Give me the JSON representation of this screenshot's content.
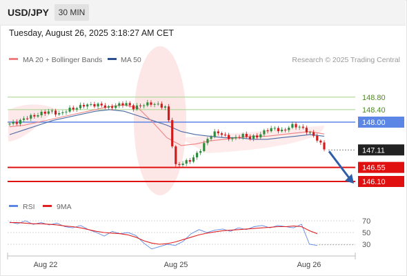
{
  "header": {
    "symbol": "USD/JPY",
    "timeframe": "30 MIN",
    "timestamp": "Tuesday, August 26, 2025 3:18:27 AM CET"
  },
  "legend": {
    "items": [
      {
        "label": "MA 20 + Bollinger Bands",
        "color": "#f08080"
      },
      {
        "label": "MA 50",
        "color": "#2b4f8e"
      }
    ],
    "copyright": "Research © 2025 Trading Central"
  },
  "rsi_legend": {
    "items": [
      {
        "label": "RSI",
        "color": "#5b86e5"
      },
      {
        "label": "9MA",
        "color": "#e02020"
      }
    ]
  },
  "colors": {
    "up_candle": "#2e8b3d",
    "down_candle": "#d01c1c",
    "resistance_line": "#a4d48a",
    "pivot_line": "#5b86e5",
    "support_line": "#e01010",
    "forecast_arrow": "#2e5ea8",
    "bollinger_fill": "#fde3e3"
  },
  "chart_data": [
    {
      "type": "candlestick",
      "title": "USD/JPY",
      "x_ticks": [
        "Aug 22",
        "Aug 25",
        "Aug 26"
      ],
      "levels": [
        {
          "value": 148.8,
          "label": "148.80",
          "kind": "resistance"
        },
        {
          "value": 148.4,
          "label": "148.40",
          "kind": "resistance"
        },
        {
          "value": 148.0,
          "label": "148.00",
          "kind": "pivot"
        },
        {
          "value": 147.11,
          "label": "147.11",
          "kind": "last_price"
        },
        {
          "value": 146.55,
          "label": "146.55",
          "kind": "support"
        },
        {
          "value": 146.1,
          "label": "146.10",
          "kind": "support"
        }
      ],
      "close_path": [
        147.95,
        148.0,
        148.15,
        148.2,
        148.3,
        148.35,
        148.25,
        148.4,
        148.45,
        148.55,
        148.55,
        148.55,
        148.45,
        148.55,
        148.6,
        148.45,
        148.55,
        148.6,
        148.55,
        148.45,
        146.6,
        146.7,
        146.8,
        147.1,
        147.5,
        147.7,
        147.55,
        147.45,
        147.6,
        147.5,
        147.55,
        147.75,
        147.8,
        147.7,
        147.9,
        147.85,
        147.7,
        147.5,
        147.15
      ],
      "ma20": [
        147.85,
        147.9,
        148.0,
        148.1,
        148.2,
        148.3,
        148.4,
        148.5,
        148.55,
        148.45,
        148.0,
        147.5,
        147.25,
        147.3,
        147.4,
        147.45,
        147.5,
        147.55,
        147.55,
        147.6,
        147.65,
        147.7,
        147.62
      ],
      "ma50": [
        147.6,
        147.75,
        147.9,
        148.05,
        148.15,
        148.25,
        148.35,
        148.4,
        148.35,
        148.2,
        148.05,
        147.9,
        147.7,
        147.6,
        147.55,
        147.5,
        147.5,
        147.45,
        147.45,
        147.5,
        147.55,
        147.6,
        147.55
      ],
      "forecast": {
        "from": 147.11,
        "to": 146.1
      }
    },
    {
      "type": "line",
      "title": "RSI",
      "y_ticks": [
        70,
        50,
        30
      ],
      "ylim": [
        20,
        80
      ],
      "series": [
        {
          "name": "RSI",
          "values": [
            68,
            65,
            70,
            64,
            67,
            63,
            66,
            60,
            58,
            62,
            55,
            50,
            44,
            52,
            48,
            50,
            45,
            32,
            22,
            26,
            30,
            28,
            35,
            48,
            55,
            50,
            54,
            56,
            52,
            58,
            55,
            60,
            62,
            58,
            62,
            60,
            58,
            64,
            30,
            28
          ]
        },
        {
          "name": "9MA",
          "values": [
            67,
            67,
            66,
            65,
            65,
            64,
            63,
            61,
            60,
            58,
            55,
            52,
            50,
            49,
            48,
            46,
            42,
            36,
            32,
            30,
            31,
            34,
            38,
            42,
            46,
            49,
            51,
            53,
            54,
            55,
            56,
            57,
            58,
            59,
            60,
            60,
            61,
            60,
            53,
            48
          ]
        }
      ]
    }
  ]
}
